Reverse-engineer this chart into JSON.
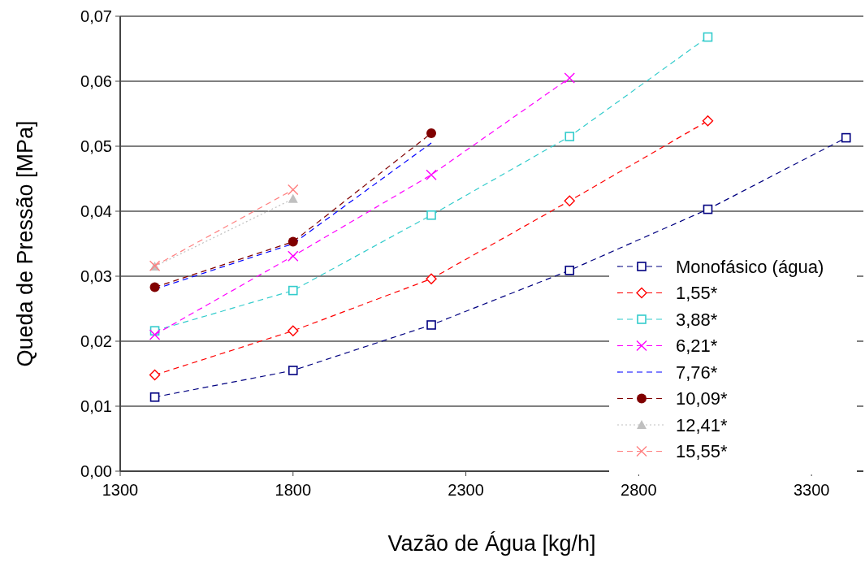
{
  "chart_data": {
    "type": "line",
    "xlabel": "Vazão de Água [kg/h]",
    "ylabel": "Queda de Pressão [MPa]",
    "xlim": [
      1300,
      3450
    ],
    "xticks": [
      1300,
      1800,
      2300,
      2800,
      3300
    ],
    "ylim": [
      0,
      0.07
    ],
    "yticks": [
      {
        "value": 0,
        "label": "0,00"
      },
      {
        "value": 0.01,
        "label": "0,01"
      },
      {
        "value": 0.02,
        "label": "0,02"
      },
      {
        "value": 0.03,
        "label": "0,03"
      },
      {
        "value": 0.04,
        "label": "0,04"
      },
      {
        "value": 0.05,
        "label": "0,05"
      },
      {
        "value": 0.06,
        "label": "0,06"
      },
      {
        "value": 0.07,
        "label": "0,07"
      }
    ],
    "grid": "y",
    "legend": "right",
    "line_style": "dashed",
    "series": [
      {
        "name": "Monofásico (água)",
        "color": "#000080",
        "marker": "square",
        "x": [
          1400,
          1800,
          2200,
          2600,
          3000,
          3400
        ],
        "values": [
          0.0114,
          0.0155,
          0.0225,
          0.0309,
          0.0403,
          0.0513
        ]
      },
      {
        "name": "1,55*",
        "color": "#ff0000",
        "marker": "diamond",
        "x": [
          1400,
          1800,
          2200,
          2600,
          3000
        ],
        "values": [
          0.0148,
          0.0216,
          0.0296,
          0.0416,
          0.0539
        ]
      },
      {
        "name": "3,88*",
        "color": "#33cccc",
        "marker": "square",
        "x": [
          1400,
          1800,
          2200,
          2600,
          3000
        ],
        "values": [
          0.0216,
          0.0278,
          0.0394,
          0.0515,
          0.0668
        ]
      },
      {
        "name": "6,21*",
        "color": "#ff00ff",
        "marker": "cross",
        "x": [
          1400,
          1800,
          2200,
          2600
        ],
        "values": [
          0.021,
          0.0331,
          0.0456,
          0.0605
        ]
      },
      {
        "name": "7,76*",
        "color": "#0000ff",
        "marker": "none",
        "x": [
          1400,
          1800,
          2200
        ],
        "values": [
          0.028,
          0.035,
          0.0505
        ]
      },
      {
        "name": "10,09*",
        "color": "#800000",
        "marker": "circle",
        "x": [
          1400,
          1800,
          2200
        ],
        "values": [
          0.0283,
          0.0353,
          0.052
        ]
      },
      {
        "name": "12,41*",
        "color": "#c0c0c0",
        "marker": "triangle",
        "line_style": "dotted",
        "x": [
          1400,
          1800
        ],
        "values": [
          0.0315,
          0.0419
        ]
      },
      {
        "name": "15,55*",
        "color": "#ff8080",
        "marker": "cross",
        "x": [
          1400,
          1800
        ],
        "values": [
          0.0316,
          0.0433
        ]
      }
    ]
  }
}
